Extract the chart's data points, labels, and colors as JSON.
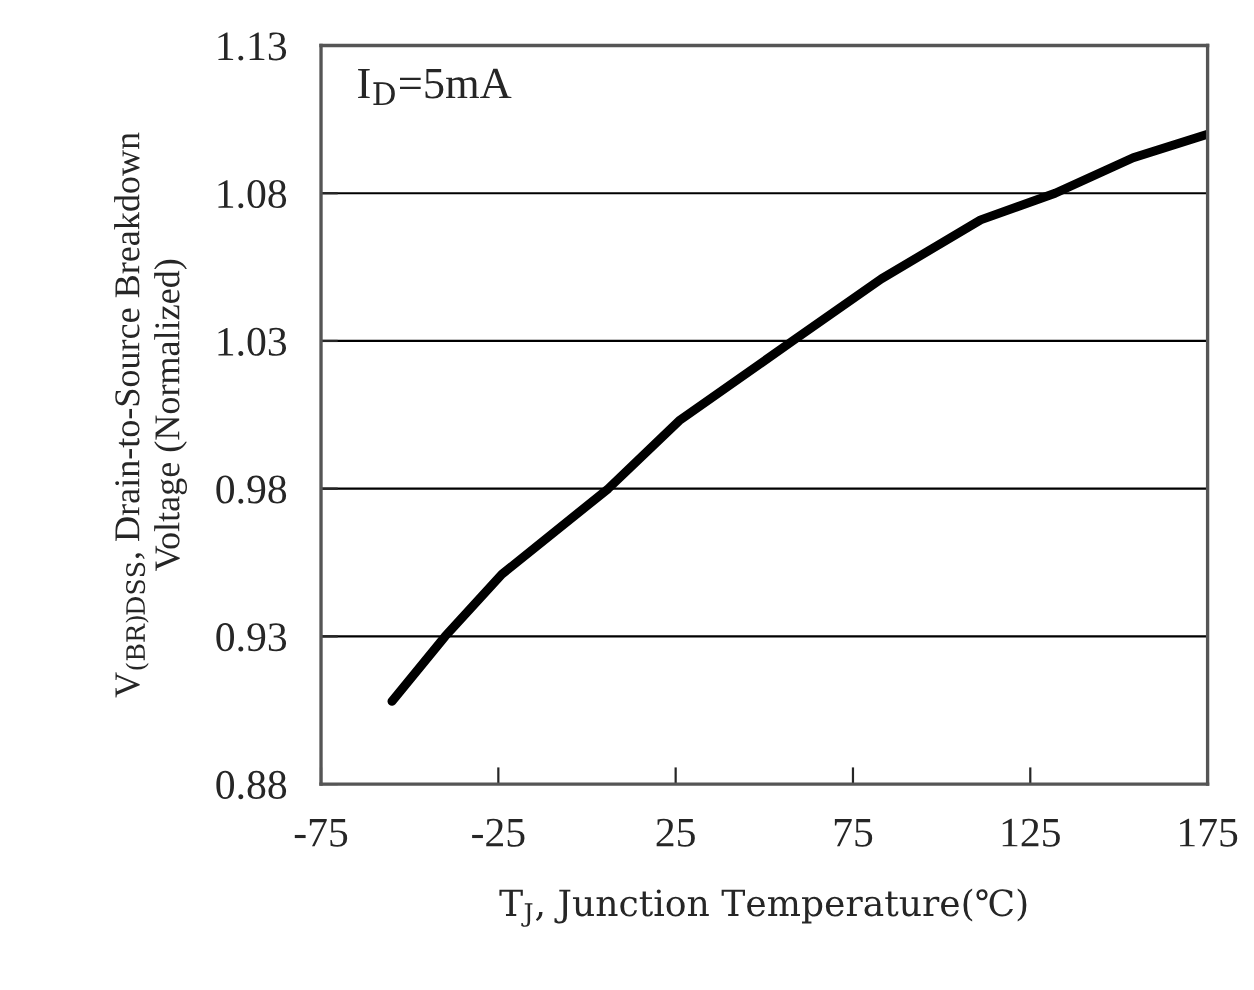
{
  "chart_data": {
    "type": "line",
    "xlabel": "T$_{J}$, Junction Temperature(℃)",
    "ylabel": "V$_{(BR)DSS}$, Drain-to-Source Breakdown\nVoltage (Normalized)",
    "annotations": [
      "I$_{D}$=5mA"
    ],
    "x": [
      -55,
      -40,
      -24,
      6,
      26,
      58,
      83,
      111,
      132,
      154,
      175
    ],
    "series": [
      {
        "color": "#000000",
        "values": [
          0.908,
          0.93,
          0.951,
          0.98,
          1.003,
          1.03,
          1.051,
          1.071,
          1.08,
          1.092,
          1.1
        ]
      }
    ],
    "xlim": [
      -75,
      175
    ],
    "xticks": [
      -75,
      -25,
      25,
      75,
      125,
      175
    ],
    "ylim": [
      0.88,
      1.13
    ],
    "yticks": [
      0.88,
      0.93,
      0.98,
      1.03,
      1.08,
      1.13
    ],
    "grid": "y",
    "legend": false
  }
}
